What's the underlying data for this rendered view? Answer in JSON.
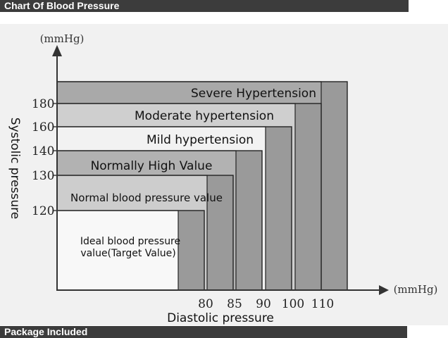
{
  "header": {
    "title": "Chart Of Blood Pressure"
  },
  "footer": {
    "section_title": "Package Included"
  },
  "chart_data": {
    "type": "area",
    "xlabel": "Diastolic pressure",
    "ylabel": "Systolic pressure",
    "x_unit": "(mmHg)",
    "y_unit": "(mmHg)",
    "x_ticks": [
      80,
      85,
      90,
      100,
      110
    ],
    "y_ticks": [
      120,
      130,
      140,
      160,
      180
    ],
    "zones": [
      {
        "label": "Severe Hypertension",
        "systolic_max": null,
        "diastolic_max": null,
        "color": "#a9a9a9"
      },
      {
        "label": "Moderate hypertension",
        "systolic_max": 180,
        "diastolic_max": 110,
        "color": "#cfcfcf"
      },
      {
        "label": "Mild hypertension",
        "systolic_max": 160,
        "diastolic_max": 100,
        "color": "#f2f2f2"
      },
      {
        "label": "Normally  High  Value",
        "systolic_max": 140,
        "diastolic_max": 90,
        "color": "#b2b2b2"
      },
      {
        "label": "Normal blood pressure value",
        "systolic_max": 130,
        "diastolic_max": 85,
        "color": "#cdcdcd"
      },
      {
        "label": "Ideal blood pressure value(Target Value)",
        "systolic_max": 120,
        "diastolic_max": 80,
        "color": "#f8f8f8"
      }
    ],
    "grid": false,
    "legend": "none"
  }
}
